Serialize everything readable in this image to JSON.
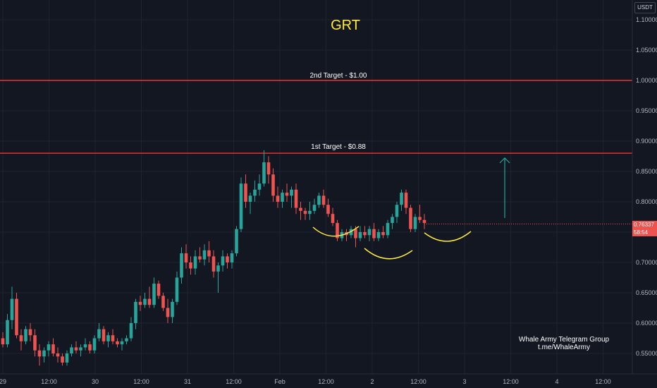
{
  "header": {
    "currency": "USDT"
  },
  "chart_data": {
    "type": "candlestick",
    "title": "GRT",
    "ylim": [
      0.52,
      1.12
    ],
    "y_ticks": [
      "1.10000",
      "1.05000",
      "1.00000",
      "0.95000",
      "0.90000",
      "0.85000",
      "0.80000",
      "0.75000",
      "0.70000",
      "0.65000",
      "0.60000",
      "0.55000"
    ],
    "x_ticks": [
      "29",
      "12:00",
      "30",
      "12:00",
      "31",
      "12:00",
      "Feb",
      "12:00",
      "2",
      "12:00",
      "3",
      "12:00",
      "4",
      "12:00"
    ],
    "x_time_range": [
      "29 00:00",
      "4 18:00"
    ],
    "last_price": "0.76337",
    "countdown": "58:54",
    "horizontal_lines": [
      {
        "label": "2nd Target - $1.00",
        "value": 1.0,
        "color": "#e53935"
      },
      {
        "label": "1st Target - $0.88",
        "value": 0.88,
        "color": "#e53935"
      }
    ],
    "annotations": [
      "Whale Army Telegram Group",
      "t.me/WhaleArmy"
    ],
    "up_color": "#26a69a",
    "down_color": "#ef5350",
    "candles": [
      [
        0.575,
        0.585,
        0.56,
        0.565
      ],
      [
        0.565,
        0.615,
        0.56,
        0.605
      ],
      [
        0.605,
        0.66,
        0.59,
        0.64
      ],
      [
        0.64,
        0.65,
        0.575,
        0.58
      ],
      [
        0.58,
        0.59,
        0.555,
        0.57
      ],
      [
        0.57,
        0.595,
        0.565,
        0.59
      ],
      [
        0.59,
        0.6,
        0.57,
        0.58
      ],
      [
        0.58,
        0.59,
        0.545,
        0.555
      ],
      [
        0.555,
        0.565,
        0.53,
        0.545
      ],
      [
        0.545,
        0.56,
        0.535,
        0.555
      ],
      [
        0.555,
        0.57,
        0.545,
        0.565
      ],
      [
        0.565,
        0.575,
        0.545,
        0.55
      ],
      [
        0.55,
        0.56,
        0.535,
        0.545
      ],
      [
        0.545,
        0.55,
        0.53,
        0.535
      ],
      [
        0.535,
        0.555,
        0.53,
        0.55
      ],
      [
        0.55,
        0.565,
        0.545,
        0.56
      ],
      [
        0.56,
        0.57,
        0.55,
        0.555
      ],
      [
        0.555,
        0.565,
        0.545,
        0.56
      ],
      [
        0.56,
        0.575,
        0.555,
        0.565
      ],
      [
        0.565,
        0.57,
        0.55,
        0.555
      ],
      [
        0.555,
        0.58,
        0.55,
        0.575
      ],
      [
        0.575,
        0.6,
        0.57,
        0.59
      ],
      [
        0.59,
        0.595,
        0.565,
        0.57
      ],
      [
        0.57,
        0.585,
        0.56,
        0.58
      ],
      [
        0.58,
        0.59,
        0.565,
        0.57
      ],
      [
        0.57,
        0.575,
        0.56,
        0.565
      ],
      [
        0.565,
        0.575,
        0.555,
        0.57
      ],
      [
        0.57,
        0.58,
        0.565,
        0.575
      ],
      [
        0.575,
        0.61,
        0.57,
        0.6
      ],
      [
        0.6,
        0.64,
        0.59,
        0.635
      ],
      [
        0.635,
        0.645,
        0.62,
        0.63
      ],
      [
        0.63,
        0.65,
        0.625,
        0.64
      ],
      [
        0.64,
        0.66,
        0.625,
        0.63
      ],
      [
        0.63,
        0.675,
        0.625,
        0.665
      ],
      [
        0.665,
        0.67,
        0.64,
        0.645
      ],
      [
        0.645,
        0.65,
        0.62,
        0.625
      ],
      [
        0.625,
        0.64,
        0.6,
        0.61
      ],
      [
        0.61,
        0.64,
        0.6,
        0.635
      ],
      [
        0.635,
        0.685,
        0.63,
        0.675
      ],
      [
        0.675,
        0.725,
        0.665,
        0.715
      ],
      [
        0.715,
        0.73,
        0.69,
        0.7
      ],
      [
        0.7,
        0.71,
        0.68,
        0.69
      ],
      [
        0.69,
        0.72,
        0.68,
        0.71
      ],
      [
        0.71,
        0.725,
        0.7,
        0.705
      ],
      [
        0.705,
        0.73,
        0.695,
        0.72
      ],
      [
        0.72,
        0.735,
        0.7,
        0.71
      ],
      [
        0.71,
        0.72,
        0.675,
        0.685
      ],
      [
        0.685,
        0.7,
        0.65,
        0.695
      ],
      [
        0.695,
        0.72,
        0.685,
        0.71
      ],
      [
        0.71,
        0.715,
        0.69,
        0.7
      ],
      [
        0.7,
        0.72,
        0.69,
        0.715
      ],
      [
        0.715,
        0.76,
        0.71,
        0.755
      ],
      [
        0.755,
        0.84,
        0.75,
        0.83
      ],
      [
        0.83,
        0.845,
        0.79,
        0.8
      ],
      [
        0.8,
        0.815,
        0.78,
        0.81
      ],
      [
        0.81,
        0.835,
        0.8,
        0.82
      ],
      [
        0.82,
        0.845,
        0.81,
        0.83
      ],
      [
        0.83,
        0.885,
        0.825,
        0.865
      ],
      [
        0.865,
        0.875,
        0.83,
        0.845
      ],
      [
        0.845,
        0.855,
        0.8,
        0.81
      ],
      [
        0.81,
        0.825,
        0.79,
        0.8
      ],
      [
        0.8,
        0.82,
        0.79,
        0.815
      ],
      [
        0.815,
        0.83,
        0.8,
        0.81
      ],
      [
        0.81,
        0.825,
        0.79,
        0.82
      ],
      [
        0.82,
        0.83,
        0.78,
        0.79
      ],
      [
        0.79,
        0.8,
        0.77,
        0.785
      ],
      [
        0.785,
        0.79,
        0.77,
        0.78
      ],
      [
        0.78,
        0.8,
        0.77,
        0.785
      ],
      [
        0.785,
        0.805,
        0.78,
        0.795
      ],
      [
        0.795,
        0.815,
        0.79,
        0.81
      ],
      [
        0.81,
        0.82,
        0.79,
        0.795
      ],
      [
        0.795,
        0.805,
        0.775,
        0.78
      ],
      [
        0.78,
        0.79,
        0.76,
        0.765
      ],
      [
        0.765,
        0.77,
        0.735,
        0.74
      ],
      [
        0.74,
        0.755,
        0.735,
        0.75
      ],
      [
        0.75,
        0.755,
        0.735,
        0.745
      ],
      [
        0.745,
        0.76,
        0.74,
        0.755
      ],
      [
        0.755,
        0.76,
        0.725,
        0.74
      ],
      [
        0.74,
        0.76,
        0.735,
        0.75
      ],
      [
        0.75,
        0.76,
        0.74,
        0.745
      ],
      [
        0.745,
        0.76,
        0.735,
        0.755
      ],
      [
        0.755,
        0.765,
        0.735,
        0.74
      ],
      [
        0.74,
        0.755,
        0.735,
        0.75
      ],
      [
        0.75,
        0.76,
        0.74,
        0.745
      ],
      [
        0.745,
        0.77,
        0.74,
        0.765
      ],
      [
        0.765,
        0.78,
        0.755,
        0.775
      ],
      [
        0.775,
        0.8,
        0.765,
        0.795
      ],
      [
        0.795,
        0.82,
        0.785,
        0.815
      ],
      [
        0.815,
        0.82,
        0.78,
        0.79
      ],
      [
        0.79,
        0.795,
        0.75,
        0.755
      ],
      [
        0.755,
        0.78,
        0.75,
        0.775
      ],
      [
        0.775,
        0.795,
        0.765,
        0.77
      ],
      [
        0.77,
        0.78,
        0.755,
        0.765
      ]
    ]
  }
}
